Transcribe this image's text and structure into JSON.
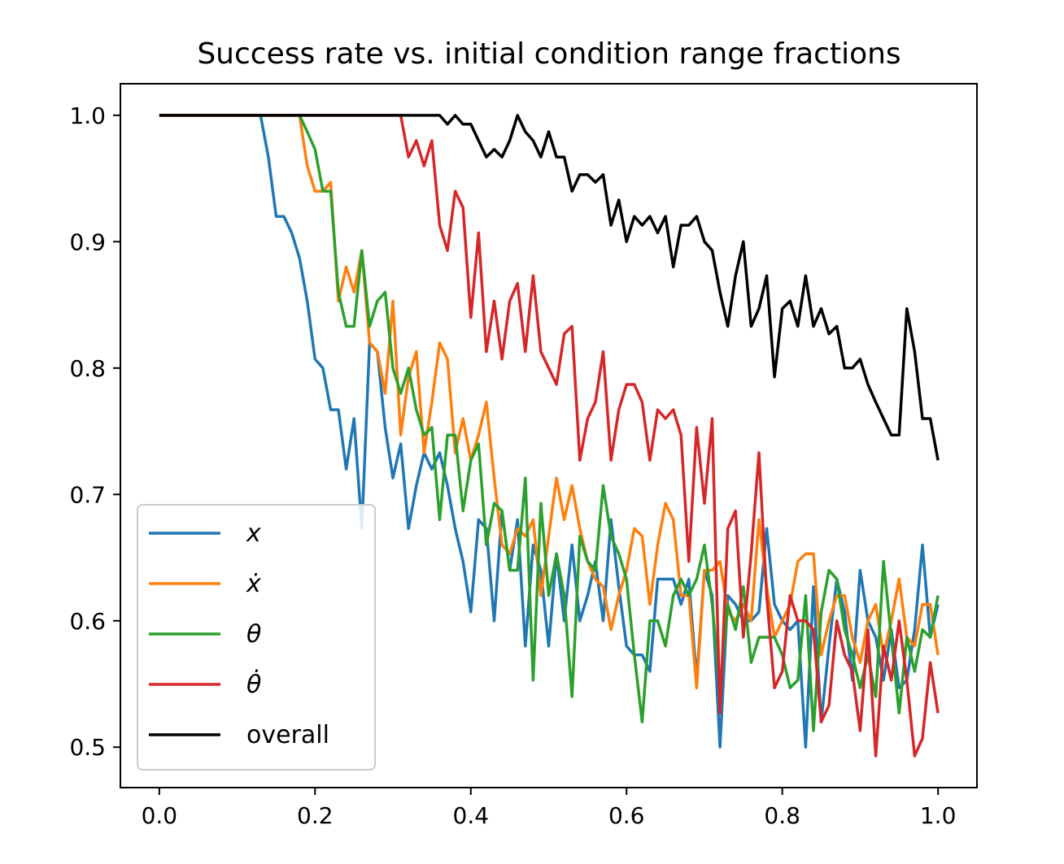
{
  "chart_data": {
    "type": "line",
    "title": "Success rate vs. initial condition range fractions",
    "xlabel": "",
    "ylabel": "",
    "xlim": [
      -0.05,
      1.05
    ],
    "ylim": [
      0.468,
      1.025
    ],
    "xticks": [
      "0.0",
      "0.2",
      "0.4",
      "0.6",
      "0.8",
      "1.0"
    ],
    "yticks": [
      "0.5",
      "0.6",
      "0.7",
      "0.8",
      "0.9",
      "1.0"
    ],
    "legend_position": "lower-left",
    "grid": false,
    "x": [
      0.0,
      0.01,
      0.02,
      0.03,
      0.04,
      0.05,
      0.06,
      0.07,
      0.08,
      0.09,
      0.1,
      0.11,
      0.12,
      0.13,
      0.14,
      0.15,
      0.16,
      0.17,
      0.18,
      0.19,
      0.2,
      0.21,
      0.22,
      0.23,
      0.24,
      0.25,
      0.26,
      0.27,
      0.28,
      0.29,
      0.3,
      0.31,
      0.32,
      0.33,
      0.34,
      0.35,
      0.36,
      0.37,
      0.38,
      0.39,
      0.4,
      0.41,
      0.42,
      0.43,
      0.44,
      0.45,
      0.46,
      0.47,
      0.48,
      0.49,
      0.5,
      0.51,
      0.52,
      0.53,
      0.54,
      0.55,
      0.56,
      0.57,
      0.58,
      0.59,
      0.6,
      0.61,
      0.62,
      0.63,
      0.64,
      0.65,
      0.66,
      0.67,
      0.68,
      0.69,
      0.7,
      0.71,
      0.72,
      0.73,
      0.74,
      0.75,
      0.76,
      0.77,
      0.78,
      0.79,
      0.8,
      0.81,
      0.82,
      0.83,
      0.84,
      0.85,
      0.86,
      0.87,
      0.88,
      0.89,
      0.9,
      0.91,
      0.92,
      0.93,
      0.94,
      0.95,
      0.96,
      0.97,
      0.98,
      0.99,
      1.0
    ],
    "series": [
      {
        "name": "x",
        "color": "#1f77b4",
        "values": [
          1,
          1,
          1,
          1,
          1,
          1,
          1,
          1,
          1,
          1,
          1,
          1,
          1,
          1,
          0.967,
          0.92,
          0.92,
          0.907,
          0.887,
          0.853,
          0.807,
          0.8,
          0.767,
          0.767,
          0.72,
          0.76,
          0.673,
          0.82,
          0.813,
          0.753,
          0.713,
          0.74,
          0.673,
          0.707,
          0.733,
          0.72,
          0.733,
          0.707,
          0.673,
          0.647,
          0.607,
          0.68,
          0.673,
          0.6,
          0.687,
          0.64,
          0.68,
          0.58,
          0.66,
          0.64,
          0.58,
          0.653,
          0.6,
          0.66,
          0.6,
          0.62,
          0.647,
          0.6,
          0.68,
          0.627,
          0.58,
          0.573,
          0.573,
          0.56,
          0.633,
          0.633,
          0.633,
          0.613,
          0.633,
          0.553,
          0.64,
          0.62,
          0.5,
          0.62,
          0.613,
          0.6,
          0.6,
          0.607,
          0.673,
          0.613,
          0.6,
          0.593,
          0.6,
          0.5,
          0.627,
          0.52,
          0.58,
          0.633,
          0.607,
          0.553,
          0.64,
          0.6,
          0.587,
          0.553,
          0.593,
          0.547,
          0.553,
          0.593,
          0.66,
          0.587,
          0.613
        ]
      },
      {
        "name": "ẋ",
        "color": "#ff7f0e",
        "values": [
          1,
          1,
          1,
          1,
          1,
          1,
          1,
          1,
          1,
          1,
          1,
          1,
          1,
          1,
          1,
          1,
          1,
          1,
          1,
          0.96,
          0.94,
          0.94,
          0.947,
          0.853,
          0.88,
          0.86,
          0.893,
          0.82,
          0.813,
          0.78,
          0.853,
          0.747,
          0.793,
          0.813,
          0.733,
          0.773,
          0.82,
          0.807,
          0.733,
          0.76,
          0.727,
          0.747,
          0.773,
          0.713,
          0.66,
          0.653,
          0.673,
          0.667,
          0.68,
          0.62,
          0.667,
          0.713,
          0.68,
          0.707,
          0.673,
          0.647,
          0.633,
          0.627,
          0.593,
          0.62,
          0.64,
          0.673,
          0.667,
          0.613,
          0.66,
          0.693,
          0.68,
          0.62,
          0.62,
          0.547,
          0.64,
          0.64,
          0.647,
          0.607,
          0.6,
          0.613,
          0.6,
          0.68,
          0.627,
          0.587,
          0.6,
          0.613,
          0.647,
          0.653,
          0.653,
          0.573,
          0.6,
          0.62,
          0.62,
          0.587,
          0.567,
          0.6,
          0.613,
          0.573,
          0.6,
          0.633,
          0.587,
          0.58,
          0.613,
          0.613,
          0.573
        ]
      },
      {
        "name": "θ",
        "color": "#2ca02c",
        "values": [
          1,
          1,
          1,
          1,
          1,
          1,
          1,
          1,
          1,
          1,
          1,
          1,
          1,
          1,
          1,
          1,
          1,
          1,
          1,
          0.987,
          0.973,
          0.94,
          0.94,
          0.86,
          0.833,
          0.833,
          0.893,
          0.833,
          0.853,
          0.86,
          0.8,
          0.78,
          0.8,
          0.767,
          0.747,
          0.753,
          0.68,
          0.747,
          0.747,
          0.687,
          0.727,
          0.74,
          0.66,
          0.693,
          0.687,
          0.64,
          0.64,
          0.713,
          0.553,
          0.693,
          0.62,
          0.653,
          0.62,
          0.54,
          0.667,
          0.647,
          0.64,
          0.707,
          0.667,
          0.653,
          0.633,
          0.573,
          0.52,
          0.6,
          0.6,
          0.58,
          0.62,
          0.633,
          0.62,
          0.633,
          0.66,
          0.613,
          0.547,
          0.613,
          0.593,
          0.627,
          0.567,
          0.587,
          0.587,
          0.587,
          0.573,
          0.547,
          0.553,
          0.62,
          0.513,
          0.607,
          0.64,
          0.633,
          0.593,
          0.573,
          0.547,
          0.573,
          0.54,
          0.647,
          0.587,
          0.527,
          0.587,
          0.56,
          0.593,
          0.587,
          0.62
        ]
      },
      {
        "name": "θ̇",
        "color": "#d62728",
        "values": [
          1,
          1,
          1,
          1,
          1,
          1,
          1,
          1,
          1,
          1,
          1,
          1,
          1,
          1,
          1,
          1,
          1,
          1,
          1,
          1,
          1,
          1,
          1,
          1,
          1,
          1,
          1,
          1,
          1,
          1,
          1,
          1,
          0.967,
          0.98,
          0.96,
          0.98,
          0.913,
          0.893,
          0.94,
          0.927,
          0.84,
          0.907,
          0.813,
          0.853,
          0.807,
          0.853,
          0.867,
          0.813,
          0.873,
          0.813,
          0.8,
          0.787,
          0.827,
          0.833,
          0.727,
          0.76,
          0.773,
          0.813,
          0.727,
          0.767,
          0.787,
          0.787,
          0.773,
          0.727,
          0.767,
          0.76,
          0.767,
          0.747,
          0.647,
          0.753,
          0.693,
          0.76,
          0.527,
          0.673,
          0.687,
          0.587,
          0.653,
          0.733,
          0.62,
          0.547,
          0.56,
          0.62,
          0.6,
          0.6,
          0.593,
          0.52,
          0.533,
          0.6,
          0.573,
          0.56,
          0.513,
          0.593,
          0.493,
          0.58,
          0.553,
          0.6,
          0.553,
          0.493,
          0.507,
          0.567,
          0.527
        ]
      },
      {
        "name": "overall",
        "color": "#000000",
        "values": [
          1,
          1,
          1,
          1,
          1,
          1,
          1,
          1,
          1,
          1,
          1,
          1,
          1,
          1,
          1,
          1,
          1,
          1,
          1,
          1,
          1,
          1,
          1,
          1,
          1,
          1,
          1,
          1,
          1,
          1,
          1,
          1,
          1,
          1,
          1,
          1,
          1,
          0.993,
          1,
          0.993,
          0.993,
          0.98,
          0.967,
          0.973,
          0.967,
          0.98,
          1,
          0.987,
          0.98,
          0.967,
          0.987,
          0.967,
          0.967,
          0.94,
          0.953,
          0.953,
          0.947,
          0.953,
          0.913,
          0.933,
          0.9,
          0.92,
          0.913,
          0.92,
          0.907,
          0.92,
          0.88,
          0.913,
          0.913,
          0.92,
          0.9,
          0.893,
          0.86,
          0.833,
          0.873,
          0.9,
          0.833,
          0.847,
          0.873,
          0.793,
          0.847,
          0.853,
          0.833,
          0.873,
          0.833,
          0.847,
          0.827,
          0.833,
          0.8,
          0.8,
          0.807,
          0.787,
          0.773,
          0.76,
          0.747,
          0.747,
          0.847,
          0.813,
          0.76,
          0.76,
          0.727
        ]
      }
    ]
  }
}
